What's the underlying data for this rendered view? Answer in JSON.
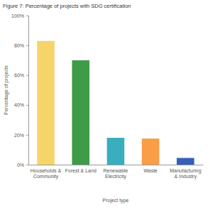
{
  "chart_data": {
    "type": "bar",
    "title": "Figure 7: Percentage of projects with SDG certification",
    "x_label": "Project type",
    "y_label": "Percentage of projects",
    "categories": [
      "Households & Community",
      "Forest & Land",
      "Renewable Electricity",
      "Waste",
      "Manufacturing & Industry"
    ],
    "values": [
      83,
      70,
      18,
      17.5,
      4.5
    ],
    "colors": [
      "#f7d46a",
      "#3e9b48",
      "#3aadbf",
      "#f99d47",
      "#3460b8"
    ],
    "ylim": [
      0,
      100
    ],
    "yticks": [
      {
        "value": 0,
        "label": "0%"
      },
      {
        "value": 20,
        "label": "20%"
      },
      {
        "value": 40,
        "label": "40%"
      },
      {
        "value": 60,
        "label": "60%"
      },
      {
        "value": 80,
        "label": "80%"
      },
      {
        "value": 100,
        "label": "100%"
      }
    ],
    "grid": false
  }
}
